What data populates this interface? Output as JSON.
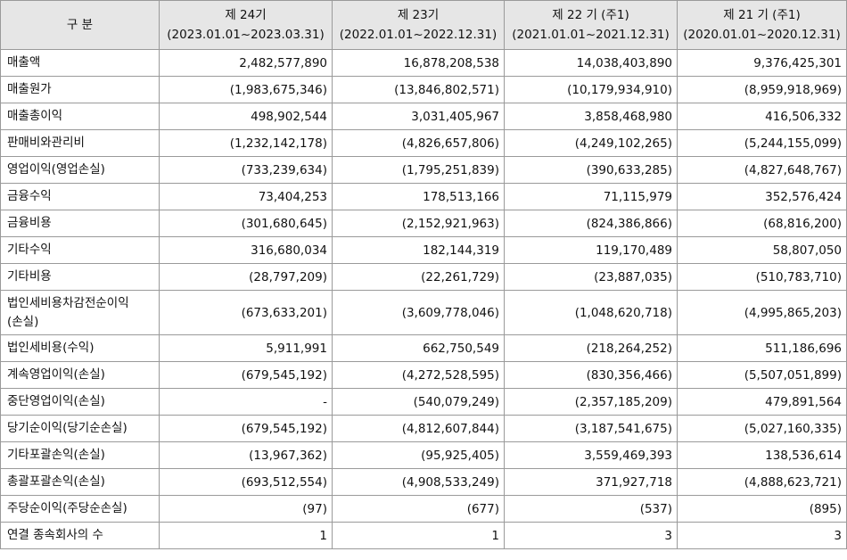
{
  "table": {
    "header": {
      "label": "구 분",
      "columns": [
        {
          "title": "제 24기",
          "period": "(2023.01.01~2023.03.31)"
        },
        {
          "title": "제 23기",
          "period": "(2022.01.01~2022.12.31)"
        },
        {
          "title": "제 22 기 (주1)",
          "period": "(2021.01.01~2021.12.31)"
        },
        {
          "title": "제 21 기 (주1)",
          "period": "(2020.01.01~2020.12.31)"
        }
      ]
    },
    "rows": [
      {
        "label": "매출액",
        "values": [
          "2,482,577,890",
          "16,878,208,538",
          "14,038,403,890",
          "9,376,425,301"
        ]
      },
      {
        "label": "매출원가",
        "values": [
          "(1,983,675,346)",
          "(13,846,802,571)",
          "(10,179,934,910)",
          "(8,959,918,969)"
        ]
      },
      {
        "label": "매출총이익",
        "values": [
          "498,902,544",
          "3,031,405,967",
          "3,858,468,980",
          "416,506,332"
        ]
      },
      {
        "label": "판매비와관리비",
        "values": [
          "(1,232,142,178)",
          "(4,826,657,806)",
          "(4,249,102,265)",
          "(5,244,155,099)"
        ]
      },
      {
        "label": "영업이익(영업손실)",
        "values": [
          "(733,239,634)",
          "(1,795,251,839)",
          "(390,633,285)",
          "(4,827,648,767)"
        ]
      },
      {
        "label": "금융수익",
        "values": [
          "73,404,253",
          "178,513,166",
          "71,115,979",
          "352,576,424"
        ]
      },
      {
        "label": "금융비용",
        "values": [
          "(301,680,645)",
          "(2,152,921,963)",
          "(824,386,866)",
          "(68,816,200)"
        ]
      },
      {
        "label": "기타수익",
        "values": [
          "316,680,034",
          "182,144,319",
          "119,170,489",
          "58,807,050"
        ]
      },
      {
        "label": "기타비용",
        "values": [
          "(28,797,209)",
          "(22,261,729)",
          "(23,887,035)",
          "(510,783,710)"
        ]
      },
      {
        "label": "법인세비용차감전순이익",
        "label2": "(손실)",
        "values": [
          "(673,633,201)",
          "(3,609,778,046)",
          "(1,048,620,718)",
          "(4,995,865,203)"
        ]
      },
      {
        "label": "법인세비용(수익)",
        "values": [
          "5,911,991",
          "662,750,549",
          "(218,264,252)",
          "511,186,696"
        ]
      },
      {
        "label": "계속영업이익(손실)",
        "values": [
          "(679,545,192)",
          "(4,272,528,595)",
          "(830,356,466)",
          "(5,507,051,899)"
        ]
      },
      {
        "label": "중단영업이익(손실)",
        "values": [
          "-",
          "(540,079,249)",
          "(2,357,185,209)",
          "479,891,564"
        ]
      },
      {
        "label": "당기순이익(당기순손실)",
        "values": [
          "(679,545,192)",
          "(4,812,607,844)",
          "(3,187,541,675)",
          "(5,027,160,335)"
        ]
      },
      {
        "label": "기타포괄손익(손실)",
        "values": [
          "(13,967,362)",
          "(95,925,405)",
          "3,559,469,393",
          "138,536,614"
        ]
      },
      {
        "label": "총괄포괄손익(손실)",
        "values": [
          "(693,512,554)",
          "(4,908,533,249)",
          "371,927,718",
          "(4,888,623,721)"
        ]
      },
      {
        "label": "주당순이익(주당순손실)",
        "values": [
          "(97)",
          "(677)",
          "(537)",
          "(895)"
        ]
      },
      {
        "label": "연결 종속회사의 수",
        "values": [
          "1",
          "1",
          "3",
          "3"
        ]
      }
    ]
  }
}
